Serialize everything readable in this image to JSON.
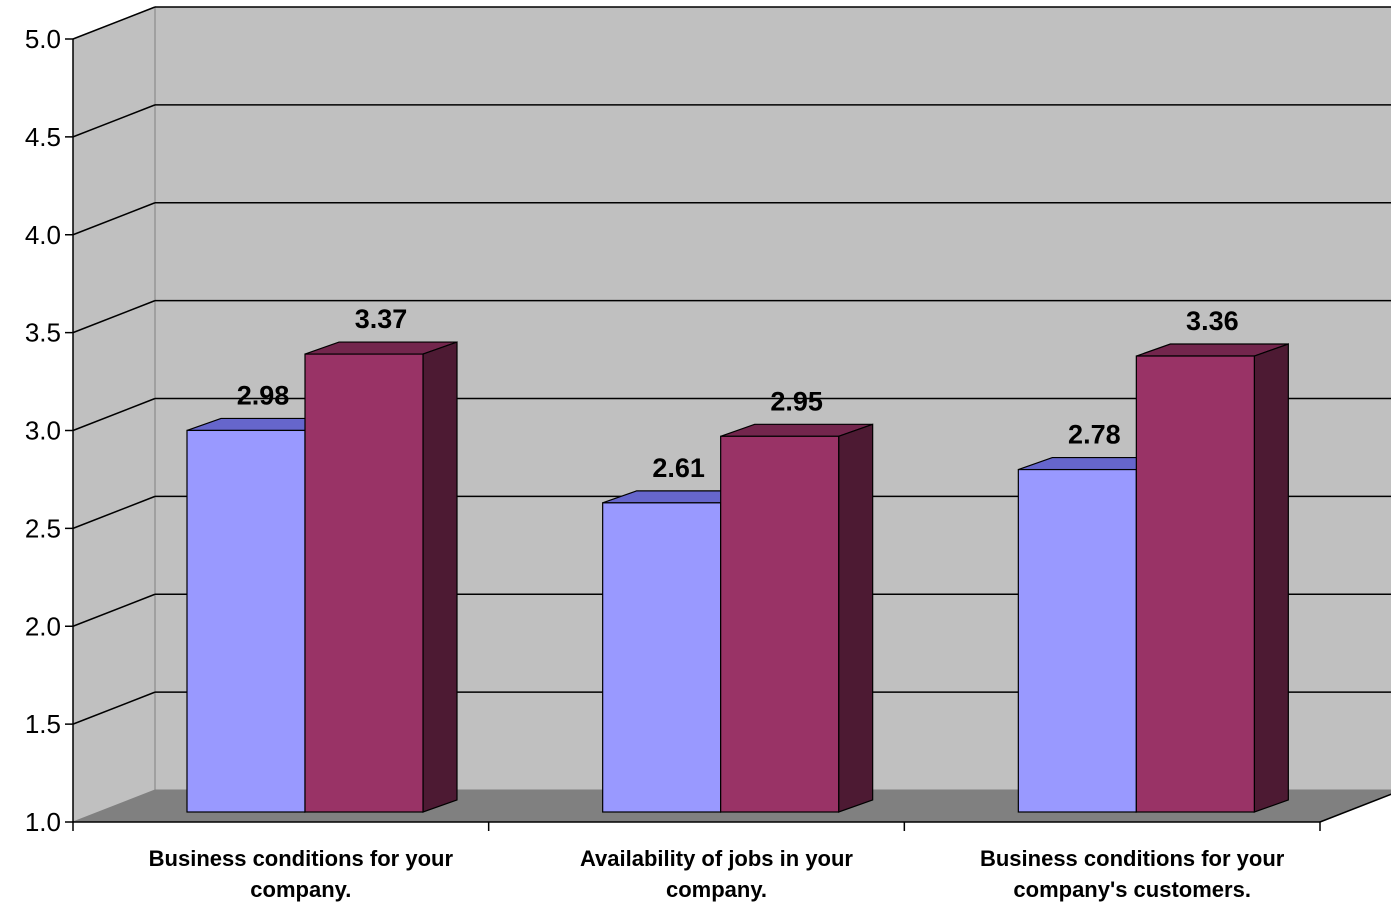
{
  "chart_data": {
    "type": "bar",
    "categories": [
      [
        "Business conditions for your",
        "company."
      ],
      [
        "Availability of jobs in your",
        "company."
      ],
      [
        "Business conditions for your",
        "company's customers."
      ]
    ],
    "series": [
      {
        "values": [
          2.98,
          2.61,
          2.78
        ],
        "color": "#9999ff",
        "side_color": "#4d4d80",
        "top_color": "#6666cc"
      },
      {
        "values": [
          3.37,
          2.95,
          3.36
        ],
        "color": "#993366",
        "side_color": "#4d1a33",
        "top_color": "#73264d"
      }
    ],
    "data_labels": [
      [
        "2.98",
        "2.61",
        "2.78"
      ],
      [
        "3.37",
        "2.95",
        "3.36"
      ]
    ],
    "yticks": [
      "1.0",
      "1.5",
      "2.0",
      "2.5",
      "3.0",
      "3.5",
      "4.0",
      "4.5",
      "5.0"
    ],
    "ylim": [
      1.0,
      5.0
    ],
    "grid": true,
    "projection": "3d",
    "wall_color": "#c0c0c0",
    "floor_color": "#808080"
  }
}
